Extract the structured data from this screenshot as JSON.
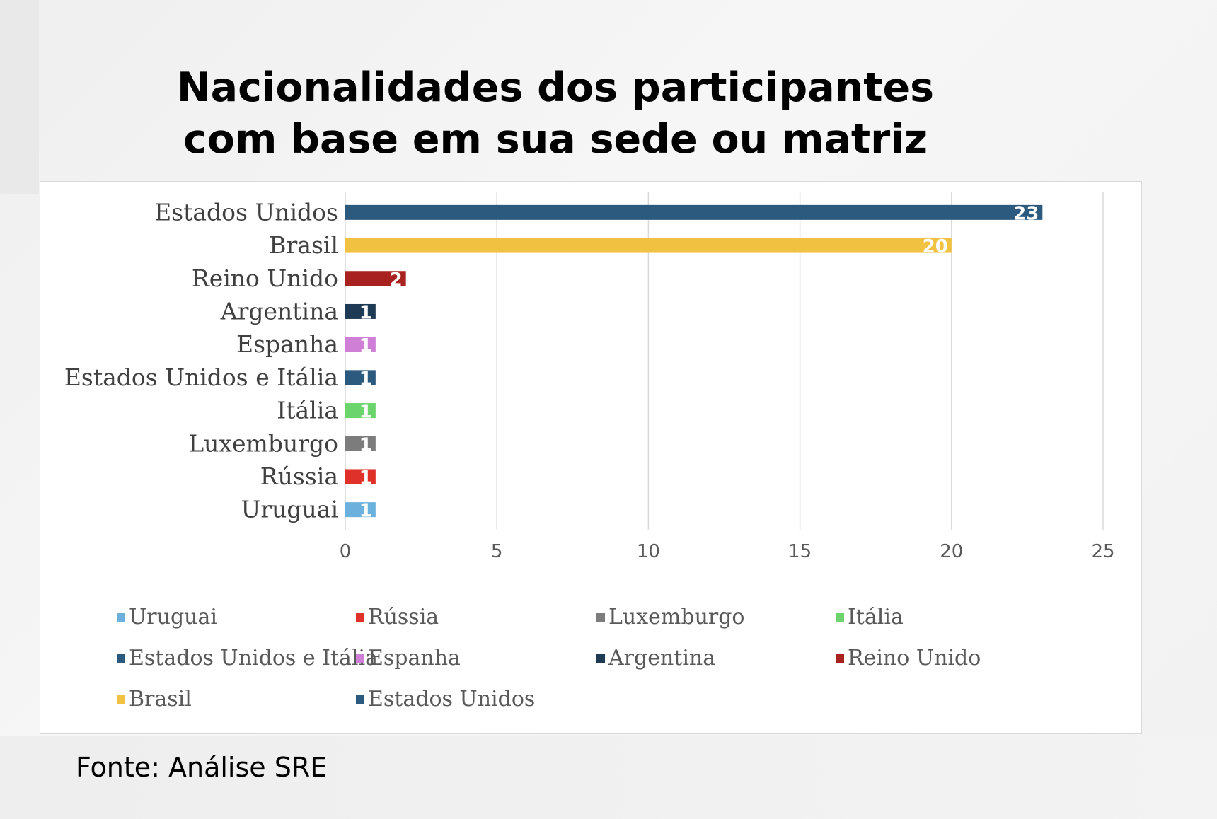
{
  "title_lines": [
    "Nacionalidades dos participantes",
    "com base em sua sede ou matriz"
  ],
  "source": "Fonte: Análise SRE",
  "chart_data": {
    "type": "bar",
    "orientation": "horizontal",
    "title": "Nacionalidades dos participantes com base em sua sede ou matriz",
    "categories": [
      "Estados Unidos",
      "Brasil",
      "Reino Unido",
      "Argentina",
      "Espanha",
      "Estados Unidos e Itália",
      "Itália",
      "Luxemburgo",
      "Rússia",
      "Uruguai"
    ],
    "values": [
      23,
      20,
      2,
      1,
      1,
      1,
      1,
      1,
      1,
      1
    ],
    "colors": [
      "#2c5a7e",
      "#f1c142",
      "#a8231f",
      "#1f3a55",
      "#cf7fd6",
      "#2c5a7e",
      "#6bd46d",
      "#7c7c7c",
      "#e0302a",
      "#6cb1de"
    ],
    "data_labels": [
      "23",
      "20",
      "2",
      "1",
      "1",
      "1",
      "1",
      "1",
      "1",
      "1"
    ],
    "xlim": [
      0,
      25
    ],
    "x_ticks": [
      "0",
      "5",
      "10",
      "15",
      "20",
      "25"
    ],
    "xlabel": "",
    "ylabel": "",
    "grid": "vertical",
    "legend_position": "bottom",
    "legend": [
      {
        "label": "Uruguai",
        "color": "#6cb1de"
      },
      {
        "label": "Rússia",
        "color": "#e0302a"
      },
      {
        "label": "Luxemburgo",
        "color": "#7c7c7c"
      },
      {
        "label": "Itália",
        "color": "#6bd46d"
      },
      {
        "label": "Estados Unidos e Itália",
        "color": "#2c5a7e"
      },
      {
        "label": "Espanha",
        "color": "#cf7fd6"
      },
      {
        "label": "Argentina",
        "color": "#1f3a55"
      },
      {
        "label": "Reino Unido",
        "color": "#a8231f"
      },
      {
        "label": "Brasil",
        "color": "#f1c142"
      },
      {
        "label": "Estados Unidos",
        "color": "#2c5a7e"
      }
    ]
  }
}
